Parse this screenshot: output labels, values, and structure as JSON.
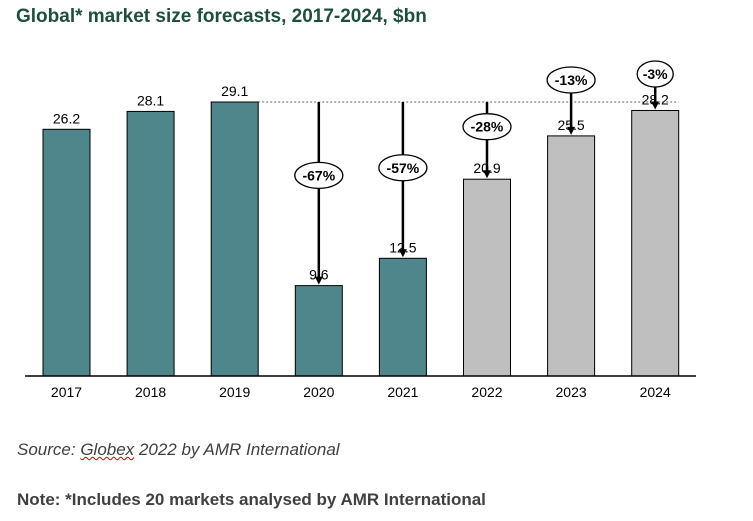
{
  "title": "Global* market size forecasts, 2017-2024, $bn",
  "source": {
    "prefix": "Source: ",
    "underlined": "Globex",
    "rest": " 2022 by AMR International"
  },
  "note": "Note: *Includes 20 markets analysed by AMR International",
  "colors": {
    "actual": "#4e868c",
    "forecast": "#bfbfbf",
    "bar_stroke": "#000000",
    "title": "#1f4e3d"
  },
  "chart_data": {
    "type": "bar",
    "title": "Global* market size forecasts, 2017-2024, $bn",
    "categories": [
      "2017",
      "2018",
      "2019",
      "2020",
      "2021",
      "2022",
      "2023",
      "2024"
    ],
    "values": [
      26.2,
      28.1,
      29.1,
      9.6,
      12.5,
      20.9,
      25.5,
      28.2
    ],
    "value_labels": [
      "26.2",
      "28.1",
      "29.1",
      "9.6",
      "12.5",
      "20.9",
      "25.5",
      "28.2"
    ],
    "bar_type": [
      "actual",
      "actual",
      "actual",
      "actual",
      "actual",
      "forecast",
      "forecast",
      "forecast"
    ],
    "reference_line": 29.1,
    "annotations": [
      {
        "category": "2020",
        "label": "-67%"
      },
      {
        "category": "2021",
        "label": "-57%"
      },
      {
        "category": "2022",
        "label": "-28%"
      },
      {
        "category": "2023",
        "label": "-13%"
      },
      {
        "category": "2024",
        "label": "-3%"
      }
    ],
    "xlabel": "",
    "ylabel": "",
    "ylim": [
      0,
      29.1
    ],
    "grid": false,
    "legend": "none"
  }
}
